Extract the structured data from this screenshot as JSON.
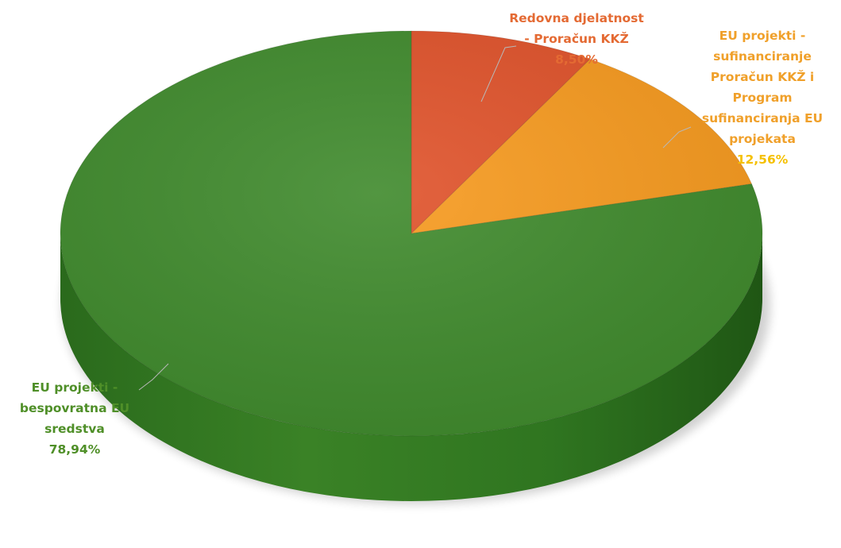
{
  "chart_data": {
    "type": "pie",
    "title": "",
    "style": "3d",
    "start_angle_deg": 0,
    "direction": "clockwise",
    "slices": [
      {
        "label_lines": [
          "Redovna djelatnost",
          "- Proračun KKŽ"
        ],
        "value": 8.5,
        "value_label": "8,50%",
        "color": "#e0522a",
        "label_color": "#e46a33"
      },
      {
        "label_lines": [
          "EU projekti -",
          "sufinanciranje",
          "Proračun KKŽ i",
          "Program",
          "sufinanciranja EU",
          "projekata"
        ],
        "value": 12.56,
        "value_label": "12,56%",
        "color": "#f79a1e",
        "label_color": "#f0a02a",
        "value_color": "#f5c000"
      },
      {
        "label_lines": [
          "EU projekti -",
          "bespovratna EU",
          "sredstva"
        ],
        "value": 78.94,
        "value_label": "78,94%",
        "color": "#3f8a2c",
        "label_color": "#4f8f28"
      }
    ]
  }
}
